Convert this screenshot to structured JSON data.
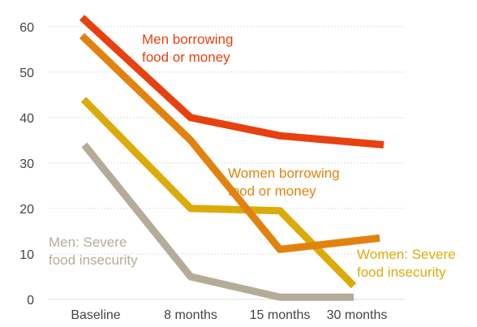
{
  "chart_data": {
    "type": "line",
    "categories": [
      "Baseline",
      "8 months",
      "15 months",
      "30 months"
    ],
    "ylim": [
      0,
      63
    ],
    "yticks": [
      0,
      10,
      20,
      30,
      40,
      50,
      60
    ],
    "grid": true,
    "legend": "none (series labelled directly on the lines)",
    "series": [
      {
        "name": "Men borrowing food or money",
        "label_lines": [
          "Men borrowing",
          "food or money"
        ],
        "color": "#e8400f",
        "values": [
          62,
          40,
          36,
          34
        ]
      },
      {
        "name": "Women borrowing food or money",
        "label_lines": [
          "Women borrowing",
          "food or money"
        ],
        "color": "#e2820e",
        "values": [
          58,
          35,
          11,
          13.5
        ]
      },
      {
        "name": "Women: Severe food insecurity",
        "label_lines": [
          "Women: Severe",
          "food insecurity"
        ],
        "color": "#dcab0b",
        "values": [
          44,
          20,
          19.5,
          3
        ]
      },
      {
        "name": "Men: Severe food insecurity",
        "label_lines": [
          "Men: Severe",
          "food insecurity"
        ],
        "color": "#b4ac98",
        "values": [
          34,
          5,
          0.5,
          0.5
        ]
      }
    ]
  }
}
